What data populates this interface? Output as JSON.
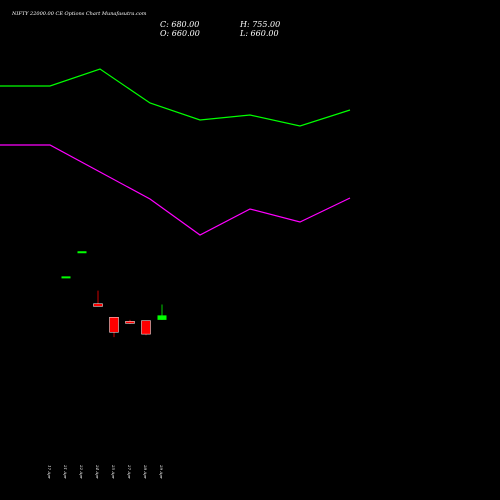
{
  "chart_data": {
    "type": "candlestick",
    "title": "NIFTY 22000.00 CE Options Chart Munafasutra.com",
    "ohlc_readout": {
      "close_label": "C: 680.00",
      "high_label": "H: 755.00",
      "open_label": "O: 660.00",
      "low_label": "L: 660.00"
    },
    "price_ylim": [
      700,
      1340
    ],
    "categories": [
      "17 Apr",
      "21 Apr",
      "22 Apr",
      "24 Apr",
      "25 Apr",
      "27 Apr",
      "28 Apr",
      "29 Apr"
    ],
    "candles": [
      {
        "date": "17 Apr",
        "open": null,
        "high": null,
        "low": null,
        "close": null
      },
      {
        "date": "21 Apr",
        "open": 1083,
        "high": 1083,
        "low": 1083,
        "close": 1083
      },
      {
        "date": "22 Apr",
        "open": 1150,
        "high": 1150,
        "low": 1150,
        "close": 1150
      },
      {
        "date": "24 Apr",
        "open": 1010,
        "high": 1045,
        "low": 1003,
        "close": 1003
      },
      {
        "date": "25 Apr",
        "open": 974,
        "high": 974,
        "low": 921,
        "close": 934
      },
      {
        "date": "27 Apr",
        "open": 963,
        "high": 967,
        "low": 956,
        "close": 958
      },
      {
        "date": "28 Apr",
        "open": 965,
        "high": 965,
        "low": 926,
        "close": 929
      },
      {
        "date": "29 Apr",
        "open": 967,
        "high": 1008,
        "low": 967,
        "close": 979
      }
    ],
    "line_series": [
      {
        "color": "#00ff00",
        "values": [
          86,
          86,
          69,
          103,
          120,
          115,
          126,
          110
        ]
      },
      {
        "color": "#ff00ff",
        "values": [
          145,
          145,
          172,
          199,
          235,
          209,
          222,
          198
        ]
      }
    ],
    "colors": {
      "up": "#00ff00",
      "down": "#ff0000",
      "background": "#000000",
      "text": "#ffffff"
    }
  }
}
